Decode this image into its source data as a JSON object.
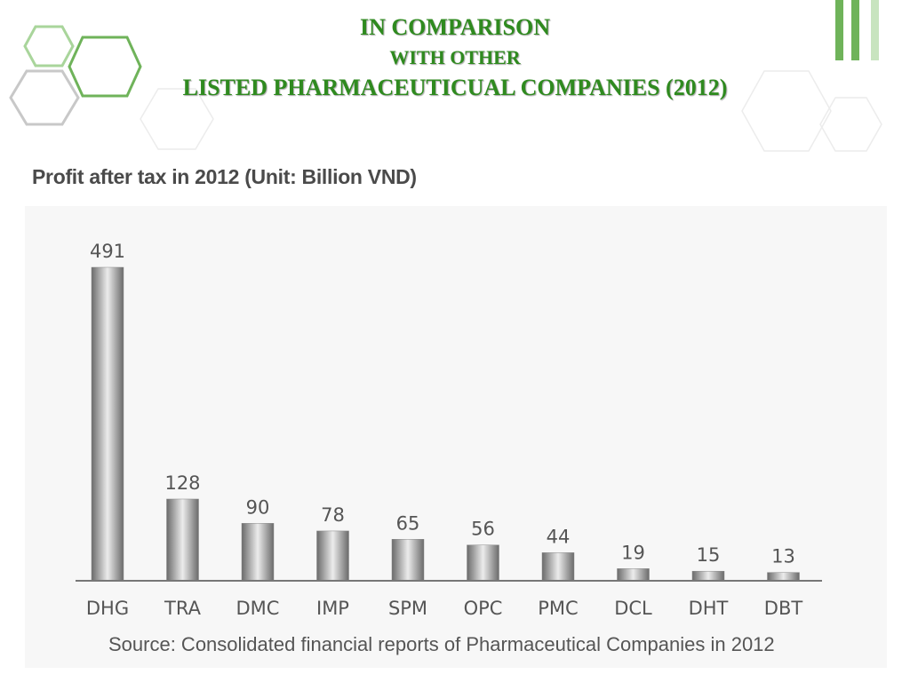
{
  "slide": {
    "title_line1": "IN COMPARISON",
    "title_line2": "WITH OTHER",
    "title_line3": "LISTED PHARMACEUTICUAL COMPANIES (2012)"
  },
  "colors": {
    "title": "#2f8a1f",
    "accent_green": "#6fb35a",
    "accent_light_green": "#a9d59b",
    "hexagon_gray": "#c8c8c8",
    "bar_dark": "#6a6a6a",
    "bar_light": "#ececec",
    "axis": "#777777"
  },
  "decorations": {
    "top_left": "hexagon-cluster",
    "top_right": "vertical-bars-icon"
  },
  "chart_data": {
    "type": "bar",
    "title": "Profit after tax in 2012  (Unit: Billion VND)",
    "categories": [
      "DHG",
      "TRA",
      "DMC",
      "IMP",
      "SPM",
      "OPC",
      "PMC",
      "DCL",
      "DHT",
      "DBT"
    ],
    "values": [
      491,
      128,
      90,
      78,
      65,
      56,
      44,
      19,
      15,
      13
    ],
    "data_labels": [
      "491",
      "128",
      "90",
      "78",
      "65",
      "56",
      "44",
      "19",
      "15",
      "13"
    ],
    "xlabel": "",
    "ylabel": "",
    "ylim": [
      0,
      491
    ],
    "grid": false,
    "legend": "none",
    "source": "Source: Consolidated financial reports of Pharmaceutical Companies in 2012"
  }
}
